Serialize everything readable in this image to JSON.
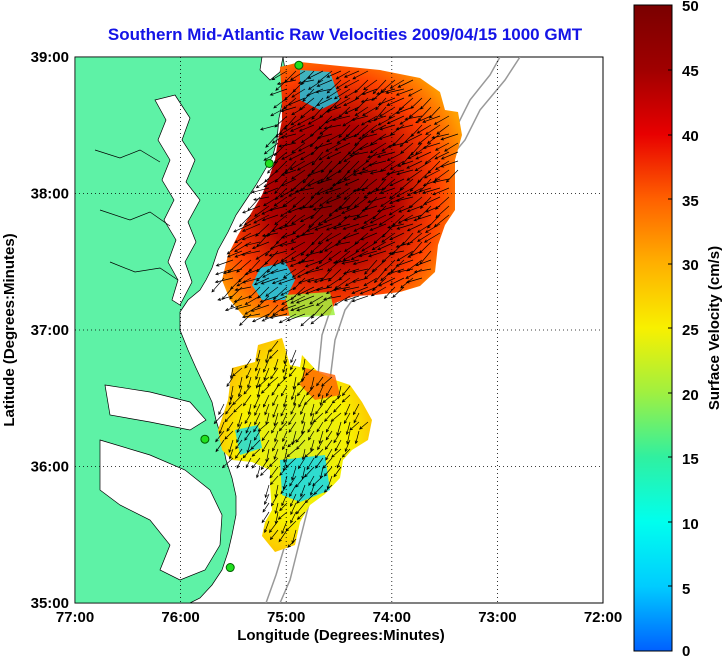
{
  "title": "Southern Mid-Atlantic Raw Velocities 2009/04/15 1000 GMT",
  "xlabel": "Longitude (Degrees:Minutes)",
  "ylabel": "Latitude (Degrees:Minutes)",
  "colorbar_label": "Surface Velocity (cm/s)",
  "x_ticks": [
    "77:00",
    "76:00",
    "75:00",
    "74:00",
    "73:00",
    "72:00"
  ],
  "y_ticks": [
    "39:00",
    "38:00",
    "37:00",
    "36:00",
    "35:00"
  ],
  "colorbar_ticks": [
    "50",
    "45",
    "40",
    "35",
    "30",
    "25",
    "20",
    "15",
    "10",
    "5",
    "0"
  ],
  "colors": {
    "land": "#5ef2a6",
    "title": "#1414e6",
    "colormap": [
      "#0060ff",
      "#00ccff",
      "#00ffee",
      "#30f0a0",
      "#a0f040",
      "#f8f000",
      "#ffb000",
      "#ff6000",
      "#e80000",
      "#a00000",
      "#7a0000"
    ]
  },
  "chart_data": {
    "type": "vector-field-map",
    "title": "Southern Mid-Atlantic Raw Velocities 2009/04/15 1000 GMT",
    "xlabel": "Longitude (Degrees:Minutes)",
    "ylabel": "Latitude (Degrees:Minutes)",
    "xlim": [
      -77.0,
      -72.0
    ],
    "ylim": [
      35.0,
      39.0
    ],
    "grid": true,
    "colorbar": {
      "label": "Surface Velocity (cm/s)",
      "range": [
        0,
        50
      ]
    },
    "stations": [
      {
        "lon": -74.88,
        "lat": 38.94
      },
      {
        "lon": -75.16,
        "lat": 38.22
      },
      {
        "lon": -75.77,
        "lat": 36.2
      },
      {
        "lon": -75.53,
        "lat": 35.26
      }
    ],
    "regions": [
      {
        "name": "northern",
        "lon_range": [
          -75.6,
          -73.2
        ],
        "lat_range": [
          37.1,
          39.0
        ],
        "typical_speed": 45,
        "typical_direction_deg_from_north": 240
      },
      {
        "name": "southern",
        "lon_range": [
          -75.9,
          -74.0
        ],
        "lat_range": [
          35.4,
          36.9
        ],
        "typical_speed": 22,
        "typical_direction_deg_from_north": 210
      }
    ]
  }
}
